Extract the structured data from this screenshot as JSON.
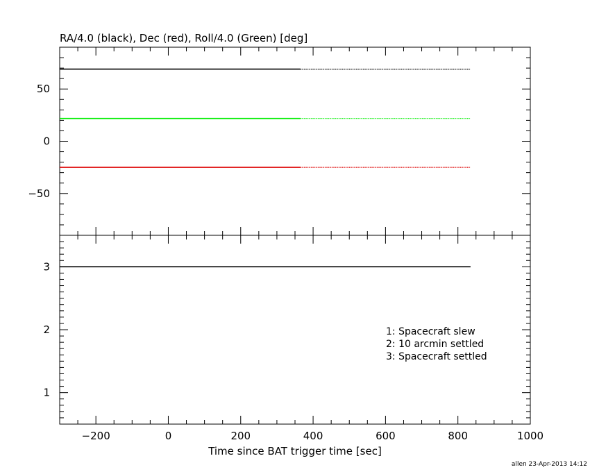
{
  "chart_data": [
    {
      "type": "line",
      "title": "RA/4.0 (black), Dec (red), Roll/4.0 (Green) [deg]",
      "xlim": [
        -300,
        1000
      ],
      "ylim": [
        -90,
        90
      ],
      "yticks": [
        -50,
        0,
        50
      ],
      "grid": false,
      "series": [
        {
          "color": "#000000",
          "x": [
            -300,
            365
          ],
          "y": [
            69.0,
            69.0
          ],
          "style": "solid"
        },
        {
          "color": "#000000",
          "x": [
            365,
            835
          ],
          "y": [
            69.0,
            69.0
          ],
          "style": "dotted"
        },
        {
          "color": "#00ee00",
          "x": [
            -300,
            365
          ],
          "y": [
            21.8,
            21.8
          ],
          "style": "solid"
        },
        {
          "color": "#00ee00",
          "x": [
            365,
            835
          ],
          "y": [
            21.8,
            21.8
          ],
          "style": "dotted"
        },
        {
          "color": "#dd0000",
          "x": [
            -300,
            365
          ],
          "y": [
            -25.0,
            -25.0
          ],
          "style": "solid"
        },
        {
          "color": "#dd0000",
          "x": [
            365,
            835
          ],
          "y": [
            -25.0,
            -25.0
          ],
          "style": "dotted"
        }
      ]
    },
    {
      "type": "line",
      "xlabel": "Time since BAT trigger time [sec]",
      "xlim": [
        -300,
        1000
      ],
      "xticks": [
        -200,
        0,
        200,
        400,
        600,
        800,
        1000
      ],
      "ylim": [
        0.5,
        3.5
      ],
      "yticks": [
        1,
        2,
        3
      ],
      "grid": false,
      "series": [
        {
          "color": "#000000",
          "x": [
            -300,
            835
          ],
          "y": [
            3,
            3
          ],
          "style": "solid"
        }
      ],
      "annotations": [
        "1: Spacecraft slew",
        "2: 10 arcmin settled",
        "3: Spacecraft settled"
      ]
    }
  ],
  "footer": "allen 23-Apr-2013 14:12"
}
